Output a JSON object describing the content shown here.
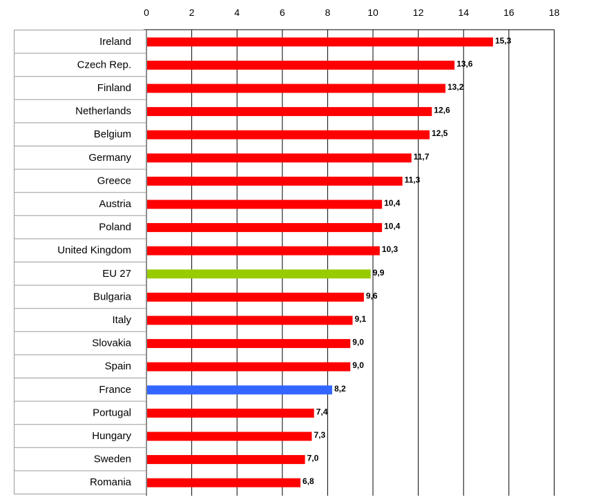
{
  "chart_data": {
    "type": "bar",
    "orientation": "horizontal",
    "title": "",
    "xlabel": "",
    "ylabel": "",
    "xlim": [
      0,
      18
    ],
    "x_ticks": [
      "0",
      "2",
      "4",
      "6",
      "8",
      "10",
      "12",
      "14",
      "16",
      "18"
    ],
    "grid": "vertical",
    "axis_position": "top",
    "categories": [
      "Ireland",
      "Czech Rep.",
      "Finland",
      "Netherlands",
      "Belgium",
      "Germany",
      "Greece",
      "Austria",
      "Poland",
      "United Kingdom",
      "EU 27",
      "Bulgaria",
      "Italy",
      "Slovakia",
      "Spain",
      "France",
      "Portugal",
      "Hungary",
      "Sweden",
      "Romania"
    ],
    "values": [
      15.3,
      13.6,
      13.2,
      12.6,
      12.5,
      11.7,
      11.3,
      10.4,
      10.4,
      10.3,
      9.9,
      9.6,
      9.1,
      9.0,
      9.0,
      8.2,
      7.4,
      7.3,
      7.0,
      6.8
    ],
    "value_labels": [
      "15,3",
      "13,6",
      "13,2",
      "12,6",
      "12,5",
      "11,7",
      "11,3",
      "10,4",
      "10,4",
      "10,3",
      "9,9",
      "9,6",
      "9,1",
      "9,0",
      "9,0",
      "8,2",
      "7,4",
      "7,3",
      "7,0",
      "6,8"
    ],
    "colors": {
      "default": "#ff0000",
      "highlight": {
        "EU 27": "#99cc00",
        "France": "#3366ff"
      }
    }
  }
}
